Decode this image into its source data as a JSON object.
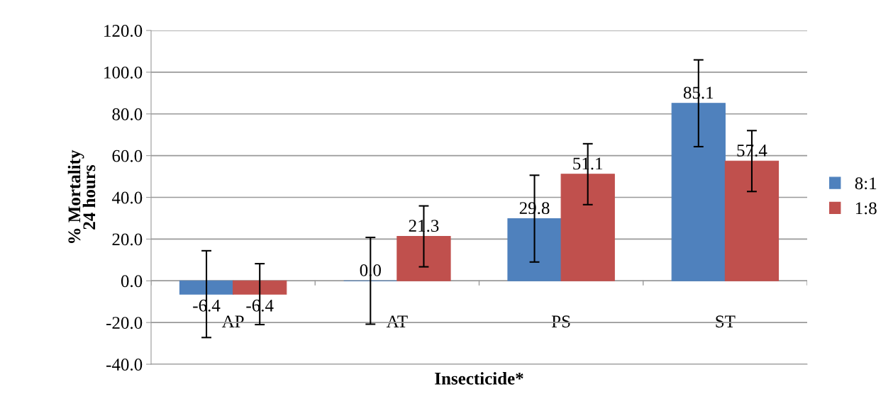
{
  "chart_data": {
    "type": "bar",
    "xlabel": "Insecticide*",
    "ylabel": "% Mortality\n24 hours",
    "categories": [
      "AP",
      "AT",
      "PS",
      "ST"
    ],
    "series": [
      {
        "name": "8:1",
        "color": "#4f81bd",
        "values": [
          -6.4,
          0.0,
          29.8,
          85.1
        ],
        "errors": [
          20.8,
          20.8,
          20.8,
          20.8
        ],
        "value_labels": [
          "-6.4",
          "0.0",
          "29.8",
          "85.1"
        ]
      },
      {
        "name": "1:8",
        "color": "#c0504d",
        "values": [
          -6.4,
          21.3,
          51.1,
          57.4
        ],
        "errors": [
          14.6,
          14.6,
          14.6,
          14.6
        ],
        "value_labels": [
          "-6.4",
          "21.3",
          "51.1",
          "57.4"
        ]
      }
    ],
    "ylim": [
      -40,
      120
    ],
    "yticks": [
      {
        "value": -40,
        "label": "-40.0"
      },
      {
        "value": -20,
        "label": "-20.0"
      },
      {
        "value": 0,
        "label": "0.0"
      },
      {
        "value": 20,
        "label": "20.0"
      },
      {
        "value": 40,
        "label": "40.0"
      },
      {
        "value": 60,
        "label": "60.0"
      },
      {
        "value": 80,
        "label": "80.0"
      },
      {
        "value": 100,
        "label": "100.0"
      },
      {
        "value": 120,
        "label": "120.0"
      }
    ],
    "grid": "y",
    "legend": "right"
  }
}
